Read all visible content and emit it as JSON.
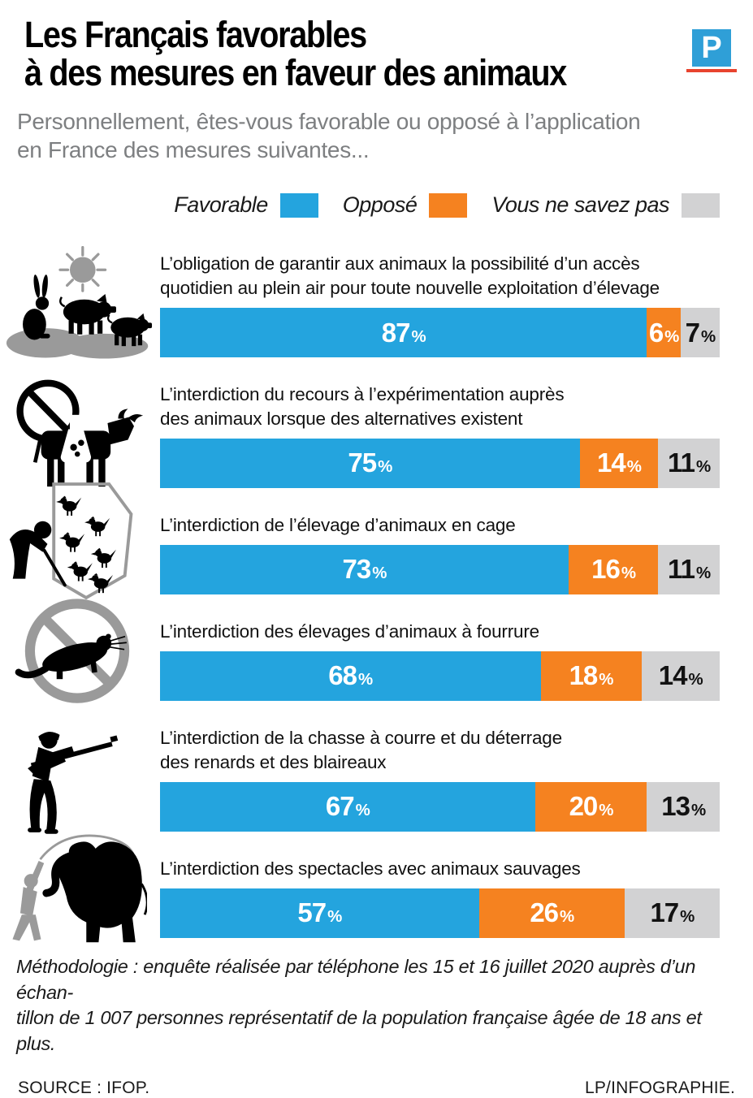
{
  "header": {
    "title_line1": "Les Français favorables",
    "title_line2": "à des mesures en faveur des animaux",
    "subtitle": "Personnellement, êtes-vous favorable ou opposé à l’application\nen France des mesures suivantes...",
    "logo_letter": "P"
  },
  "colors": {
    "favorable": "#24a4de",
    "oppose": "#f58220",
    "unknown": "#d2d2d3",
    "icon_gray": "#9a9a9a",
    "logo_blue": "#2f9fd7",
    "logo_red": "#e8432e"
  },
  "labels": {
    "percent": "%"
  },
  "chart_data": {
    "type": "bar",
    "stacked": true,
    "orientation": "horizontal",
    "unit": "%",
    "xlim": [
      0,
      100
    ],
    "legend_position": "top",
    "series": [
      "Favorable",
      "Opposé",
      "Vous ne savez pas"
    ],
    "series_colors": [
      "#24a4de",
      "#f58220",
      "#d2d2d3"
    ],
    "items": [
      {
        "icon": "farm-animals-outdoor-access-icon",
        "question": "L’obligation de garantir aux animaux la possibilité d’un accès\nquotidien au plein air pour toute nouvelle exploitation d’élevage",
        "values": [
          87,
          6,
          7
        ]
      },
      {
        "icon": "no-animal-experimentation-cow-icon",
        "question": "L’interdiction du recours à l’expérimentation auprès\ndes animaux lorsque des alternatives existent",
        "values": [
          75,
          14,
          11
        ]
      },
      {
        "icon": "caged-chickens-farmer-icon",
        "question": "L’interdiction de l’élevage d’animaux en cage",
        "values": [
          73,
          16,
          11
        ]
      },
      {
        "icon": "no-fur-farming-mink-icon",
        "question": "L’interdiction des élevages d’animaux à fourrure",
        "values": [
          68,
          18,
          14
        ]
      },
      {
        "icon": "hunter-rifle-icon",
        "question": "L’interdiction de la chasse à courre et du déterrage\ndes renards et des blaireaux",
        "values": [
          67,
          20,
          13
        ]
      },
      {
        "icon": "circus-elephant-trainer-icon",
        "question": "L’interdiction des spectacles avec animaux sauvages",
        "values": [
          57,
          26,
          17
        ]
      }
    ]
  },
  "footer": {
    "methodology": "Méthodologie : enquête réalisée par téléphone les 15 et 16 juillet 2020 auprès d’un échan-\ntillon de 1 007 personnes représentatif de la population française âgée de 18 ans et plus.",
    "source": "SOURCE : IFOP.",
    "credit": "LP/INFOGRAPHIE."
  }
}
